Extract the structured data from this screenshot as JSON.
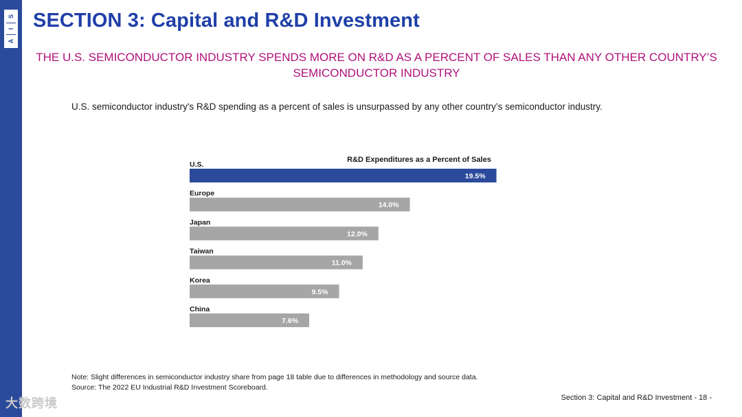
{
  "header": {
    "logo_letters": [
      "S",
      "I",
      "A"
    ],
    "title": "SECTION 3: Capital and R&D Investment",
    "subtitle": "THE U.S. SEMICONDUCTOR INDUSTRY SPENDS MORE ON R&D AS A PERCENT OF SALES THAN ANY OTHER COUNTRY’S SEMICONDUCTOR INDUSTRY",
    "description": "U.S. semiconductor industry's R&D spending as a percent of sales is unsurpassed by any other country’s semiconductor industry."
  },
  "chart_data": {
    "type": "bar",
    "orientation": "horizontal",
    "title": "R&D Expenditures as a Percent of Sales",
    "categories": [
      "U.S.",
      "Europe",
      "Japan",
      "Taiwan",
      "Korea",
      "China"
    ],
    "values": [
      19.5,
      14.0,
      12.0,
      11.0,
      9.5,
      7.6
    ],
    "value_labels": [
      "19.5%",
      "14.0%",
      "12.0%",
      "11.0%",
      "9.5%",
      "7.6%"
    ],
    "highlight_color": "#2B4A9B",
    "bar_color": "#A6A6A6",
    "highlight_category": "U.S.",
    "xlim": [
      0,
      20
    ]
  },
  "notes": {
    "line1": "Note: Slight differences in semiconductor industry share from page 18 table due to differences in methodology and source data.",
    "line2": "Source: The 2022 EU Industrial R&D Investment Scoreboard."
  },
  "footer": {
    "text": "Section 3: Capital and R&D Investment  - 18 -"
  },
  "watermark": {
    "text": "大数跨境"
  },
  "colors": {
    "brand_blue": "#2B4A9B",
    "title_blue": "#1F3FA8",
    "subtitle_magenta": "#B0117A"
  }
}
